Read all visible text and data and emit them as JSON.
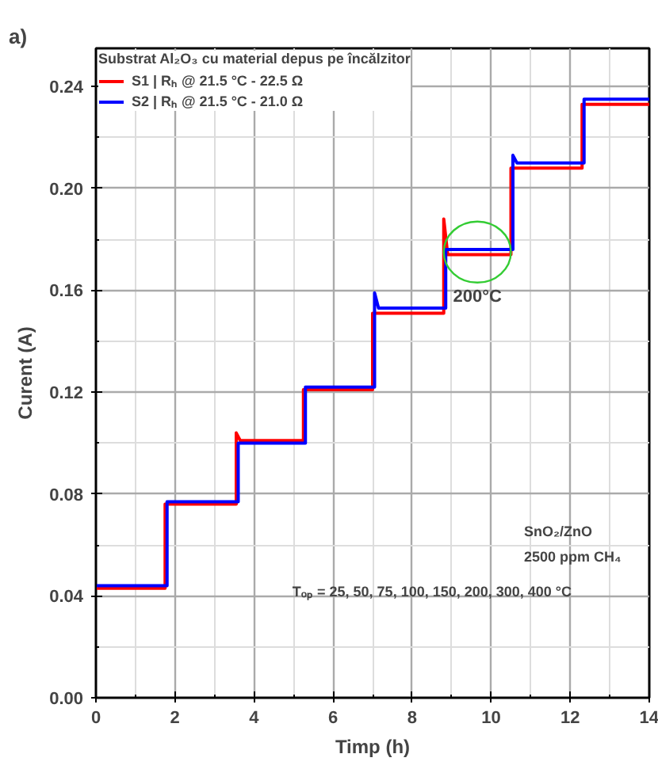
{
  "chart_data": {
    "type": "line",
    "xlabel": "Timp (h)",
    "ylabel": "Curent (A)",
    "legend_title": "Substrat Al₂O₃ cu material depus pe încălzitor",
    "xlim": [
      0,
      14
    ],
    "xticks": [
      0,
      2,
      4,
      6,
      8,
      10,
      12,
      14
    ],
    "ylim": [
      0,
      0.255
    ],
    "yticks": [
      {
        "value": 0,
        "label": "0.00"
      },
      {
        "value": 0.04,
        "label": "0.04"
      },
      {
        "value": 0.08,
        "label": "0.08"
      },
      {
        "value": 0.12,
        "label": "0.12"
      },
      {
        "value": 0.16,
        "label": "0.16"
      },
      {
        "value": 0.2,
        "label": "0.20"
      },
      {
        "value": 0.24,
        "label": "0.24"
      }
    ],
    "grid": true,
    "legend": "top left",
    "line_style": "solid",
    "series": [
      {
        "name": "S1 | Rₕ @ 21.5 °C - 22.5 Ω",
        "color": "#ff0000",
        "x": [
          0,
          1.75,
          1.75,
          3.55,
          3.55,
          3.65,
          5.25,
          5.25,
          7.0,
          7.0,
          8.8,
          8.8,
          8.9,
          10.5,
          10.5,
          12.3,
          12.3,
          14
        ],
        "values": [
          0.043,
          0.043,
          0.076,
          0.076,
          0.104,
          0.101,
          0.101,
          0.121,
          0.121,
          0.151,
          0.151,
          0.188,
          0.174,
          0.174,
          0.208,
          0.208,
          0.233,
          0.233
        ]
      },
      {
        "name": "S2 | Rₕ @ 21.5 °C - 21.0 Ω",
        "color": "#0000ff",
        "x": [
          0,
          1.8,
          1.8,
          3.6,
          3.6,
          5.3,
          5.3,
          7.05,
          7.05,
          7.15,
          8.85,
          8.85,
          10.55,
          10.55,
          10.65,
          12.35,
          12.35,
          14
        ],
        "values": [
          0.044,
          0.044,
          0.077,
          0.077,
          0.1,
          0.1,
          0.122,
          0.122,
          0.159,
          0.153,
          0.153,
          0.176,
          0.176,
          0.213,
          0.21,
          0.21,
          0.235,
          0.235
        ]
      }
    ],
    "annotations": [
      "a)",
      {
        "text": "200°C",
        "x": 9.65,
        "y": 0.175
      },
      "SnO₂/ZnO",
      "2500 ppm CH₄",
      "Tₒₚ = 25, 50, 75, 100, 150, 200, 300, 400 °C"
    ]
  }
}
